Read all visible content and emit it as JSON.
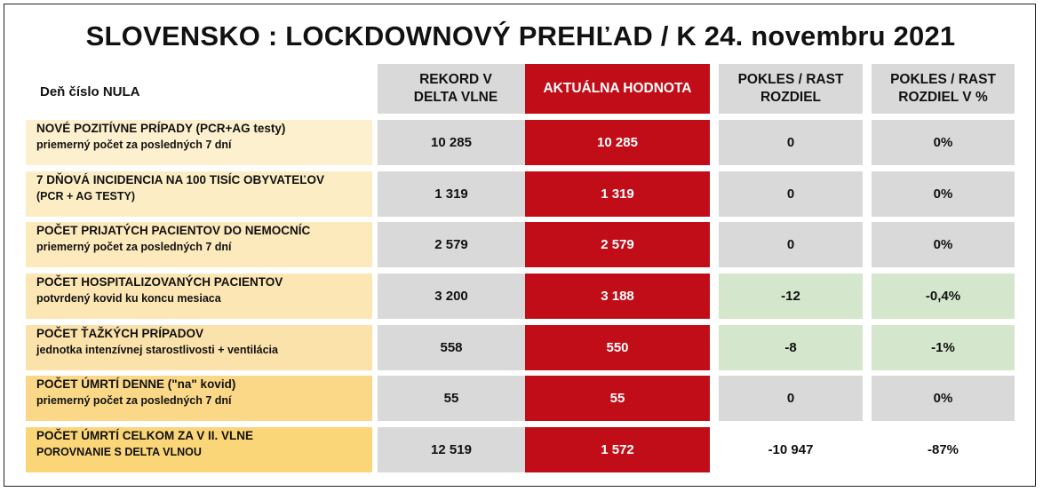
{
  "title": "SLOVENSKO : LOCKDOWNOVÝ PREHĽAD  / K 24. novembru 2021",
  "day_zero_label": "Deň číslo NULA",
  "columns": {
    "record": [
      "REKORD V",
      "DELTA VLNE"
    ],
    "current": [
      "AKTUÁLNA HODNOTA"
    ],
    "diff": [
      "POKLES / RAST",
      "ROZDIEL"
    ],
    "diff_pct": [
      "POKLES / RAST",
      "ROZDIEL V %"
    ]
  },
  "colors": {
    "red": "#c00d17",
    "grey": "#d9d9d9",
    "green": "#d4e6cb"
  },
  "rows": [
    {
      "line1": "NOVÉ POZITÍVNE PRÍPADY (PCR+AG testy)",
      "line2": "priemerný počet za posledných 7 dní",
      "record": "10 285",
      "current": "10 285",
      "diff": "0",
      "diff_pct": "0%",
      "label_color": "#fdf0ce",
      "diff_color": "#d9d9d9"
    },
    {
      "line1": "7 DŇOVÁ INCIDENCIA NA 100 TISÍC OBYVATEĽOV",
      "line2": "(PCR + AG TESTY)",
      "record": "1 319",
      "current": "1 319",
      "diff": "0",
      "diff_pct": "0%",
      "label_color": "#fdedc5",
      "diff_color": "#d9d9d9"
    },
    {
      "line1": "POČET PRIJATÝCH PACIENTOV DO NEMOCNÍC",
      "line2": "priemerný počet za posledných 7 dní",
      "record": "2 579",
      "current": "2 579",
      "diff": "0",
      "diff_pct": "0%",
      "label_color": "#fce9bc",
      "diff_color": "#d9d9d9"
    },
    {
      "line1": "POČET HOSPITALIZOVANÝCH PACIENTOV",
      "line2": "potvrdený kovid ku koncu mesiaca",
      "record": "3 200",
      "current": "3 188",
      "diff": "-12",
      "diff_pct": "-0,4%",
      "label_color": "#fce6b4",
      "diff_color": "#d4e6cb"
    },
    {
      "line1": "POČET ŤAŽKÝCH PRÍPADOV",
      "line2": "jednotka intenzívnej starostlivosti + ventilácia",
      "record": "558",
      "current": "550",
      "diff": "-8",
      "diff_pct": "-1%",
      "label_color": "#fbe2aa",
      "diff_color": "#d4e6cb"
    },
    {
      "line1": "POČET ÚMRTÍ DENNE (\"na\" kovid)",
      "line2": "priemerný počet za posledných 7 dní",
      "record": "55",
      "current": "55",
      "diff": "0",
      "diff_pct": "0%",
      "label_color": "#fbd887",
      "diff_color": "#d9d9d9"
    },
    {
      "line1": "POČET ÚMRTÍ CELKOM ZA V II. VLNE",
      "line2": "POROVNANIE S DELTA VLNOU",
      "record": "12 519",
      "current": "1 572",
      "diff": "-10 947",
      "diff_pct": "-87%",
      "label_color": "#fbd679",
      "diff_color": "#ffffff"
    }
  ]
}
